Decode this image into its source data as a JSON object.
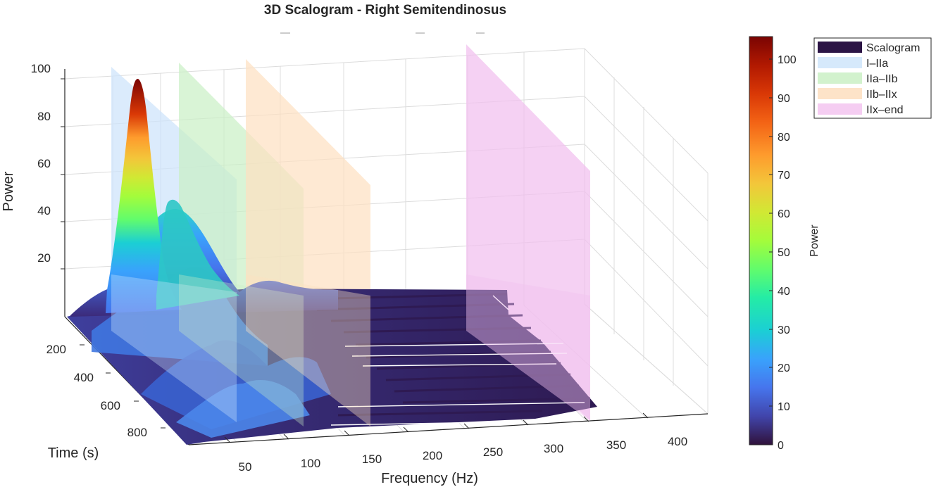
{
  "chart_data": {
    "type": "surface",
    "title": "3D Scalogram - Right Semitendinosus",
    "xlabel": "Frequency (Hz)",
    "ylabel": "Time (s)",
    "zlabel": "Power",
    "x_ticks": [
      50,
      100,
      150,
      200,
      250,
      300,
      350,
      400
    ],
    "y_ticks": [
      200,
      400,
      600,
      800
    ],
    "z_ticks": [
      20,
      40,
      60,
      80,
      100
    ],
    "xlim": [
      20,
      450
    ],
    "ylim": [
      0,
      1000
    ],
    "zlim": [
      0,
      100
    ],
    "grid": true,
    "colormap": "turbo",
    "colorbar": {
      "label": "Power",
      "ticks": [
        0,
        10,
        20,
        30,
        40,
        50,
        60,
        70,
        80,
        90,
        100
      ],
      "range": [
        0,
        106
      ]
    },
    "peak": {
      "frequency_hz": 40,
      "time_s": 60,
      "power": 98
    },
    "secondary_peaks": [
      {
        "frequency_hz": 60,
        "time_s": 60,
        "power": 44
      },
      {
        "frequency_hz": 150,
        "time_s": 60,
        "power": 16
      }
    ],
    "bands": [
      {
        "name": "I–IIa",
        "frequency_hz": 55,
        "color": "#cfe4fb"
      },
      {
        "name": "IIa–IIb",
        "frequency_hz": 100,
        "color": "#c9efc5"
      },
      {
        "name": "IIb–IIx",
        "frequency_hz": 145,
        "color": "#fde0c0"
      },
      {
        "name": "IIx–end",
        "frequency_hz": 300,
        "color": "#f2c2ef"
      }
    ],
    "legend": {
      "placement": "top-right",
      "entries": [
        "Scalogram",
        "I–IIa",
        "IIa–IIb",
        "IIb–IIx",
        "IIx–end"
      ]
    },
    "legend_colors": [
      "#2b1445",
      "#d6e9fb",
      "#d2f2cd",
      "#fde3c8",
      "#f5cdf2"
    ]
  }
}
